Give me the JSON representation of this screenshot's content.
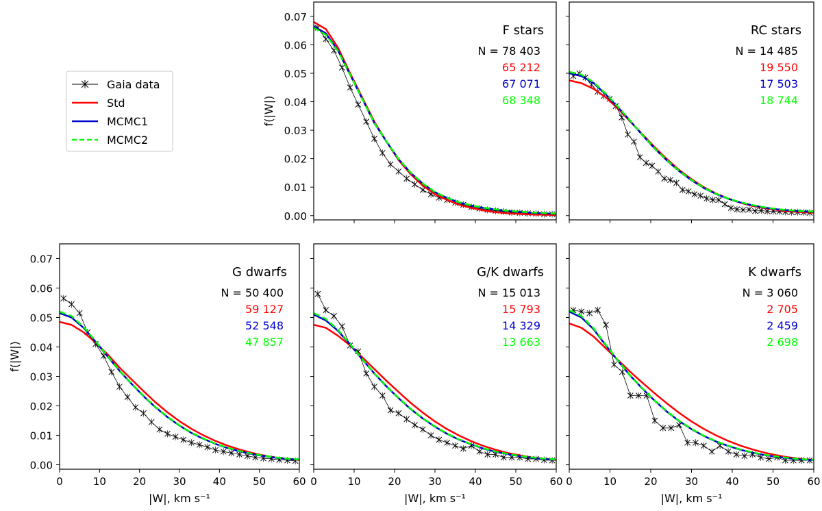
{
  "legend": {
    "items": [
      {
        "label": "Gaia data",
        "color": "#000000",
        "kind": "data"
      },
      {
        "label": "Std",
        "color": "#ff0000",
        "kind": "solid"
      },
      {
        "label": "MCMC1",
        "color": "#0000cc",
        "kind": "solid"
      },
      {
        "label": "MCMC2",
        "color": "#00ff00",
        "kind": "dashed"
      }
    ]
  },
  "axes": {
    "xlabel": "|W|,  km s⁻¹",
    "ylabel": "f(|W|)",
    "xticks": [
      "0",
      "10",
      "20",
      "30",
      "40",
      "50",
      "60"
    ],
    "yticks": [
      "0.00",
      "0.01",
      "0.02",
      "0.03",
      "0.04",
      "0.05",
      "0.06",
      "0.07"
    ]
  },
  "chart_data": [
    {
      "type": "line",
      "title": "F stars",
      "counts": [
        "N = 78 403",
        "65 212",
        "67 071",
        "68 348"
      ],
      "xlim": [
        0,
        60
      ],
      "ylim": [
        -0.0015,
        0.075
      ],
      "model": {
        "std": [
          0.068,
          0.0655,
          0.059,
          0.05,
          0.0415,
          0.033,
          0.026,
          0.0195,
          0.0145,
          0.0105,
          0.0075,
          0.0055,
          0.0038,
          0.0027,
          0.0018,
          0.0012,
          0.0008,
          0.0006,
          0.0004,
          0.0003,
          0.0002
        ],
        "mcmc1": [
          0.0665,
          0.064,
          0.058,
          0.0495,
          0.041,
          0.0325,
          0.026,
          0.0198,
          0.015,
          0.0112,
          0.0082,
          0.0062,
          0.0046,
          0.0035,
          0.0027,
          0.0021,
          0.0016,
          0.0013,
          0.001,
          0.0008,
          0.0006
        ],
        "mcmc2": [
          0.066,
          0.0635,
          0.0578,
          0.0495,
          0.041,
          0.0326,
          0.0261,
          0.0199,
          0.0151,
          0.0113,
          0.0083,
          0.0063,
          0.0047,
          0.0036,
          0.0028,
          0.0022,
          0.0017,
          0.0014,
          0.0011,
          0.0009,
          0.0007
        ]
      },
      "data": [
        0.066,
        0.062,
        0.058,
        0.052,
        0.045,
        0.039,
        0.033,
        0.027,
        0.022,
        0.018,
        0.0155,
        0.013,
        0.011,
        0.009,
        0.0075,
        0.0063,
        0.0055,
        0.0045,
        0.0038,
        0.003,
        0.0025,
        0.002,
        0.0017,
        0.0014,
        0.0011,
        0.001,
        0.0008,
        0.0007,
        0.0005,
        0.0005
      ]
    },
    {
      "type": "line",
      "title": "RC stars",
      "counts": [
        "N = 14 485",
        "19 550",
        "17 503",
        "18 744"
      ],
      "xlim": [
        0,
        60
      ],
      "ylim": [
        -0.0015,
        0.075
      ],
      "model": {
        "std": [
          0.0475,
          0.0465,
          0.0445,
          0.0415,
          0.0375,
          0.033,
          0.0285,
          0.024,
          0.0198,
          0.016,
          0.0128,
          0.01,
          0.0078,
          0.006,
          0.0045,
          0.0034,
          0.0026,
          0.002,
          0.0015,
          0.0012,
          0.001
        ],
        "mcmc1": [
          0.05,
          0.049,
          0.0465,
          0.0425,
          0.038,
          0.0332,
          0.0282,
          0.0235,
          0.0193,
          0.0156,
          0.0124,
          0.0097,
          0.0076,
          0.0059,
          0.0046,
          0.0036,
          0.0028,
          0.0022,
          0.0018,
          0.0015,
          0.0013
        ],
        "mcmc2": [
          0.0505,
          0.0495,
          0.0468,
          0.0428,
          0.0382,
          0.0333,
          0.0283,
          0.0236,
          0.0194,
          0.0157,
          0.0125,
          0.0098,
          0.0077,
          0.006,
          0.0047,
          0.0037,
          0.0029,
          0.0023,
          0.0019,
          0.0016,
          0.0014
        ]
      },
      "data": [
        0.049,
        0.05,
        0.0485,
        0.046,
        0.0435,
        0.042,
        0.041,
        0.0385,
        0.0345,
        0.0285,
        0.026,
        0.0205,
        0.0185,
        0.0175,
        0.0155,
        0.013,
        0.0125,
        0.0115,
        0.009,
        0.0085,
        0.0075,
        0.007,
        0.006,
        0.0055,
        0.0055,
        0.004,
        0.0027,
        0.0022,
        0.002,
        0.0021,
        0.0016,
        0.0018,
        0.0015,
        0.0015,
        0.0014,
        0.0013,
        0.0012,
        0.0012,
        0.0011,
        0.001
      ]
    },
    {
      "type": "line",
      "title": "G dwarfs",
      "counts": [
        "N = 50 400",
        "59 127",
        "52 548",
        "47 857"
      ],
      "xlim": [
        0,
        60
      ],
      "ylim": [
        -0.0015,
        0.075
      ],
      "model": {
        "std": [
          0.0485,
          0.0475,
          0.045,
          0.0415,
          0.0375,
          0.033,
          0.029,
          0.025,
          0.0212,
          0.0178,
          0.0148,
          0.0122,
          0.01,
          0.0081,
          0.0065,
          0.0052,
          0.0041,
          0.0032,
          0.0025,
          0.002,
          0.0016
        ],
        "mcmc1": [
          0.0515,
          0.05,
          0.0465,
          0.0418,
          0.0368,
          0.0319,
          0.0275,
          0.0233,
          0.0195,
          0.0162,
          0.0133,
          0.0108,
          0.0088,
          0.0071,
          0.0057,
          0.0046,
          0.0037,
          0.003,
          0.0024,
          0.002,
          0.0017
        ],
        "mcmc2": [
          0.052,
          0.0505,
          0.0468,
          0.042,
          0.0369,
          0.032,
          0.0276,
          0.0234,
          0.0196,
          0.0163,
          0.0134,
          0.0109,
          0.0089,
          0.0072,
          0.0058,
          0.0047,
          0.0038,
          0.0031,
          0.0025,
          0.0021,
          0.0018
        ]
      },
      "data": [
        0.0565,
        0.0545,
        0.0515,
        0.045,
        0.041,
        0.037,
        0.0315,
        0.0265,
        0.023,
        0.0195,
        0.0175,
        0.0145,
        0.012,
        0.0105,
        0.0095,
        0.0085,
        0.0075,
        0.0068,
        0.006,
        0.005,
        0.0045,
        0.004,
        0.0035,
        0.003,
        0.0025,
        0.0022,
        0.002,
        0.0017,
        0.0015,
        0.0013
      ]
    },
    {
      "type": "line",
      "title": "G/K dwarfs",
      "counts": [
        "N = 15 013",
        "15 793",
        "14 329",
        "13 663"
      ],
      "xlim": [
        0,
        60
      ],
      "ylim": [
        -0.0015,
        0.075
      ],
      "model": {
        "std": [
          0.0475,
          0.0465,
          0.0438,
          0.0405,
          0.0365,
          0.0325,
          0.0285,
          0.0247,
          0.021,
          0.0177,
          0.0147,
          0.0121,
          0.0099,
          0.008,
          0.0064,
          0.0051,
          0.004,
          0.0032,
          0.0025,
          0.002,
          0.0016
        ],
        "mcmc1": [
          0.051,
          0.049,
          0.0455,
          0.0408,
          0.0358,
          0.031,
          0.0266,
          0.0226,
          0.0189,
          0.0157,
          0.0129,
          0.0105,
          0.0085,
          0.0069,
          0.0055,
          0.0044,
          0.0036,
          0.0029,
          0.0024,
          0.002,
          0.0017
        ],
        "mcmc2": [
          0.0515,
          0.0495,
          0.0458,
          0.041,
          0.0359,
          0.0311,
          0.0267,
          0.0227,
          0.019,
          0.0158,
          0.013,
          0.0106,
          0.0086,
          0.007,
          0.0056,
          0.0045,
          0.0037,
          0.003,
          0.0025,
          0.0021,
          0.0018
        ]
      },
      "data": [
        0.058,
        0.0525,
        0.0505,
        0.047,
        0.0405,
        0.0385,
        0.031,
        0.0265,
        0.0235,
        0.0185,
        0.0175,
        0.0155,
        0.0135,
        0.012,
        0.01,
        0.0085,
        0.0075,
        0.0065,
        0.0055,
        0.0065,
        0.0045,
        0.0035,
        0.0035,
        0.0025,
        0.0025,
        0.0025,
        0.002,
        0.002,
        0.0016,
        0.0015
      ]
    },
    {
      "type": "line",
      "title": "K dwarfs",
      "counts": [
        "N = 3 060",
        "2 705",
        "2 459",
        "2 698"
      ],
      "xlim": [
        0,
        60
      ],
      "ylim": [
        -0.0015,
        0.075
      ],
      "model": {
        "std": [
          0.048,
          0.0465,
          0.0435,
          0.0395,
          0.0355,
          0.0315,
          0.0278,
          0.0242,
          0.0208,
          0.0176,
          0.0147,
          0.0122,
          0.01,
          0.0081,
          0.0065,
          0.0052,
          0.0041,
          0.0032,
          0.0025,
          0.002,
          0.0016
        ],
        "mcmc1": [
          0.052,
          0.05,
          0.046,
          0.0405,
          0.0352,
          0.0302,
          0.0258,
          0.0217,
          0.018,
          0.0148,
          0.0121,
          0.0098,
          0.0079,
          0.0064,
          0.0051,
          0.0041,
          0.0033,
          0.0027,
          0.0022,
          0.0018,
          0.0016
        ],
        "mcmc2": [
          0.0525,
          0.0505,
          0.0463,
          0.0407,
          0.0353,
          0.0303,
          0.0259,
          0.0218,
          0.0181,
          0.0149,
          0.0122,
          0.0099,
          0.008,
          0.0065,
          0.0052,
          0.0042,
          0.0034,
          0.0028,
          0.0023,
          0.0019,
          0.0017
        ]
      },
      "data": [
        0.0525,
        0.052,
        0.0515,
        0.0525,
        0.0475,
        0.034,
        0.0315,
        0.0235,
        0.0235,
        0.0235,
        0.015,
        0.0125,
        0.0125,
        0.0135,
        0.0075,
        0.0075,
        0.0065,
        0.0045,
        0.0065,
        0.0045,
        0.0035,
        0.003,
        0.0035,
        0.0025,
        0.002,
        0.0025,
        0.0015,
        0.0015,
        0.0015,
        0.0015
      ]
    }
  ]
}
